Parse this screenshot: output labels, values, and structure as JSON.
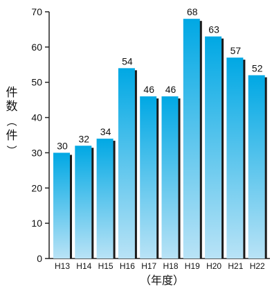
{
  "chart_data": {
    "type": "bar",
    "categories": [
      "H13",
      "H14",
      "H15",
      "H16",
      "H17",
      "H18",
      "H19",
      "H20",
      "H21",
      "H22"
    ],
    "values": [
      30,
      32,
      34,
      54,
      46,
      46,
      68,
      63,
      57,
      52
    ],
    "xlabel": "（年度）",
    "ylabel": "件数（件）",
    "ylabel_parts": [
      "（",
      "件",
      "数",
      "件",
      "）"
    ],
    "ylim": [
      0,
      70
    ],
    "yticks": [
      0,
      10,
      20,
      30,
      40,
      50,
      60,
      70
    ],
    "data_labels": true,
    "legend": "none",
    "colors": {
      "bar_top": "#00a8e4",
      "bar_bottom": "#b9e3f6",
      "bar_shadow": "#1a1a1a",
      "axis": "#222222"
    }
  }
}
